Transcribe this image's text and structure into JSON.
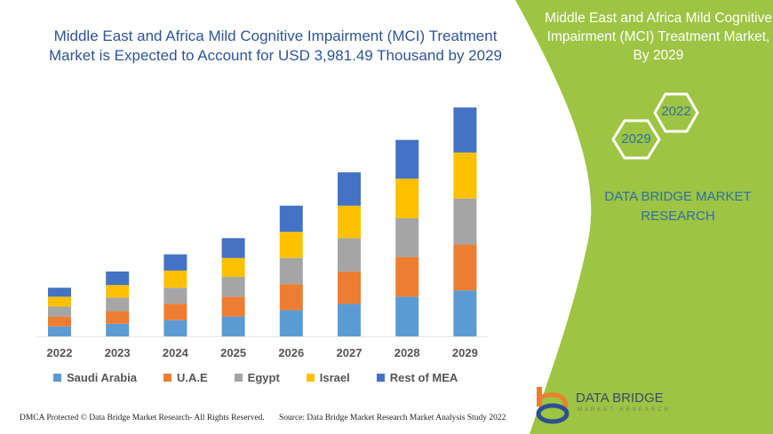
{
  "title": "Middle East and Africa Mild Cognitive Impairment (MCI) Treatment Market is Expected to Account for USD 3,981.49 Thousand by 2029",
  "side_panel": {
    "title": "Middle East and Africa Mild Cognitive Impairment (MCI) Treatment Market, By 2029",
    "hex_1": "2022",
    "hex_2": "2029",
    "brand": "DATA BRIDGE MARKET RESEARCH",
    "panel_color": "#9dc443"
  },
  "logo": {
    "name": "DATA BRIDGE",
    "sub": "MARKET RESEARCH"
  },
  "footer": {
    "left": "DMCA Protected © Data Bridge Market Research- All Rights Reserved.",
    "right": "Source: Data Bridge Market Research Market Analysis Study 2022"
  },
  "chart_data": {
    "type": "bar",
    "stacked": true,
    "categories": [
      "2022",
      "2023",
      "2024",
      "2025",
      "2026",
      "2027",
      "2028",
      "2029"
    ],
    "series": [
      {
        "name": "Saudi Arabia",
        "color": "#5b9bd5",
        "values": [
          11,
          14,
          18,
          22,
          29,
          36,
          44,
          51
        ]
      },
      {
        "name": "U.A.E",
        "color": "#ed7d31",
        "values": [
          11,
          14,
          18,
          22,
          29,
          36,
          44,
          51
        ]
      },
      {
        "name": "Egypt",
        "color": "#a5a5a5",
        "values": [
          11,
          15,
          18,
          22,
          29,
          37,
          43,
          51
        ]
      },
      {
        "name": "Israel",
        "color": "#ffc000",
        "values": [
          11,
          14,
          19,
          21,
          29,
          36,
          44,
          51
        ]
      },
      {
        "name": "Rest of MEA",
        "color": "#4472c4",
        "values": [
          10,
          15,
          18,
          22,
          29,
          37,
          43,
          50
        ]
      }
    ],
    "ylim": [
      0,
      260
    ],
    "grid": false,
    "legend": "bottom",
    "units_note": ""
  }
}
